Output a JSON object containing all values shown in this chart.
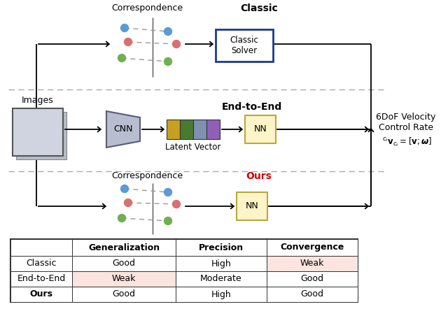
{
  "colors": {
    "blue_dot": "#5b9bd5",
    "red_dot": "#d97070",
    "green_dot": "#70b050",
    "orange_rect": "#c8a020",
    "olive_rect": "#4a7a30",
    "gray_rect": "#8090b0",
    "purple_rect": "#9060b8",
    "nn_fill": "#fdf5c8",
    "nn_border": "#b8a840",
    "classic_solver_fill": "white",
    "classic_solver_border": "#1a3a90",
    "cnn_fill": "#b8bdd0",
    "image_bg": "#d0d4e0",
    "purple_line": "#6040a0",
    "purple_line2": "#b0a0c8",
    "bg": "white",
    "arrow": "#111111",
    "ours_red": "#cc0000",
    "table_red": "#fce4e0",
    "table_green": "#e8f0e8",
    "sep_dash": "#aaaaaa"
  },
  "table": {
    "headers": [
      "",
      "Generalization",
      "Precision",
      "Convergence"
    ],
    "rows": [
      [
        "Classic",
        "Good",
        "High",
        "Weak"
      ],
      [
        "End-to-End",
        "Weak",
        "Moderate",
        "Good"
      ],
      [
        "Ours",
        "Good",
        "High",
        "Good"
      ]
    ],
    "cell_colors": [
      [
        "white",
        "white",
        "white",
        "#fce4e0"
      ],
      [
        "white",
        "#fce4e0",
        "white",
        "white"
      ],
      [
        "white",
        "white",
        "white",
        "white"
      ]
    ],
    "bold_rows": [
      2
    ]
  }
}
